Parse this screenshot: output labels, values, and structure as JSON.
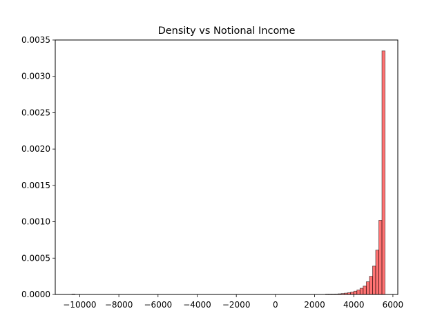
{
  "chart_data": {
    "type": "bar",
    "title": "Density vs Notional Income",
    "xlabel": "",
    "ylabel": "",
    "xlim": [
      -11250,
      6250
    ],
    "ylim": [
      0,
      0.0035
    ],
    "x_ticks": [
      -10000,
      -8000,
      -6000,
      -4000,
      -2000,
      0,
      2000,
      4000,
      6000
    ],
    "x_tick_labels": [
      "−10000",
      "−8000",
      "−6000",
      "−4000",
      "−2000",
      "0",
      "2000",
      "4000",
      "6000"
    ],
    "y_ticks": [
      0,
      0.0005,
      0.001,
      0.0015,
      0.002,
      0.0025,
      0.003,
      0.0035
    ],
    "y_tick_labels": [
      "0.0000",
      "0.0005",
      "0.0010",
      "0.0015",
      "0.0020",
      "0.0025",
      "0.0030",
      "0.0035"
    ],
    "grid": false,
    "bar_color": "#ff0000",
    "bar_alpha": 0.55,
    "edge_color": "#000000",
    "bins": [
      {
        "x0": -10400,
        "x1": -10240,
        "density": 1e-06
      },
      {
        "x0": 2560,
        "x1": 2720,
        "density": 2e-06
      },
      {
        "x0": 2720,
        "x1": 2880,
        "density": 3e-06
      },
      {
        "x0": 2880,
        "x1": 3040,
        "density": 4e-06
      },
      {
        "x0": 3040,
        "x1": 3200,
        "density": 6e-06
      },
      {
        "x0": 3200,
        "x1": 3360,
        "density": 9e-06
      },
      {
        "x0": 3360,
        "x1": 3520,
        "density": 1.3e-05
      },
      {
        "x0": 3520,
        "x1": 3680,
        "density": 1.8e-05
      },
      {
        "x0": 3680,
        "x1": 3840,
        "density": 2.4e-05
      },
      {
        "x0": 3840,
        "x1": 4000,
        "density": 3.3e-05
      },
      {
        "x0": 4000,
        "x1": 4160,
        "density": 4.5e-05
      },
      {
        "x0": 4160,
        "x1": 4320,
        "density": 6.2e-05
      },
      {
        "x0": 4320,
        "x1": 4480,
        "density": 8.5e-05
      },
      {
        "x0": 4480,
        "x1": 4640,
        "density": 0.000115
      },
      {
        "x0": 4640,
        "x1": 4800,
        "density": 0.000175
      },
      {
        "x0": 4800,
        "x1": 4960,
        "density": 0.00025
      },
      {
        "x0": 4960,
        "x1": 5120,
        "density": 0.00039
      },
      {
        "x0": 5120,
        "x1": 5280,
        "density": 0.00061
      },
      {
        "x0": 5280,
        "x1": 5440,
        "density": 0.00102
      },
      {
        "x0": 5440,
        "x1": 5600,
        "density": 0.00335
      }
    ]
  }
}
